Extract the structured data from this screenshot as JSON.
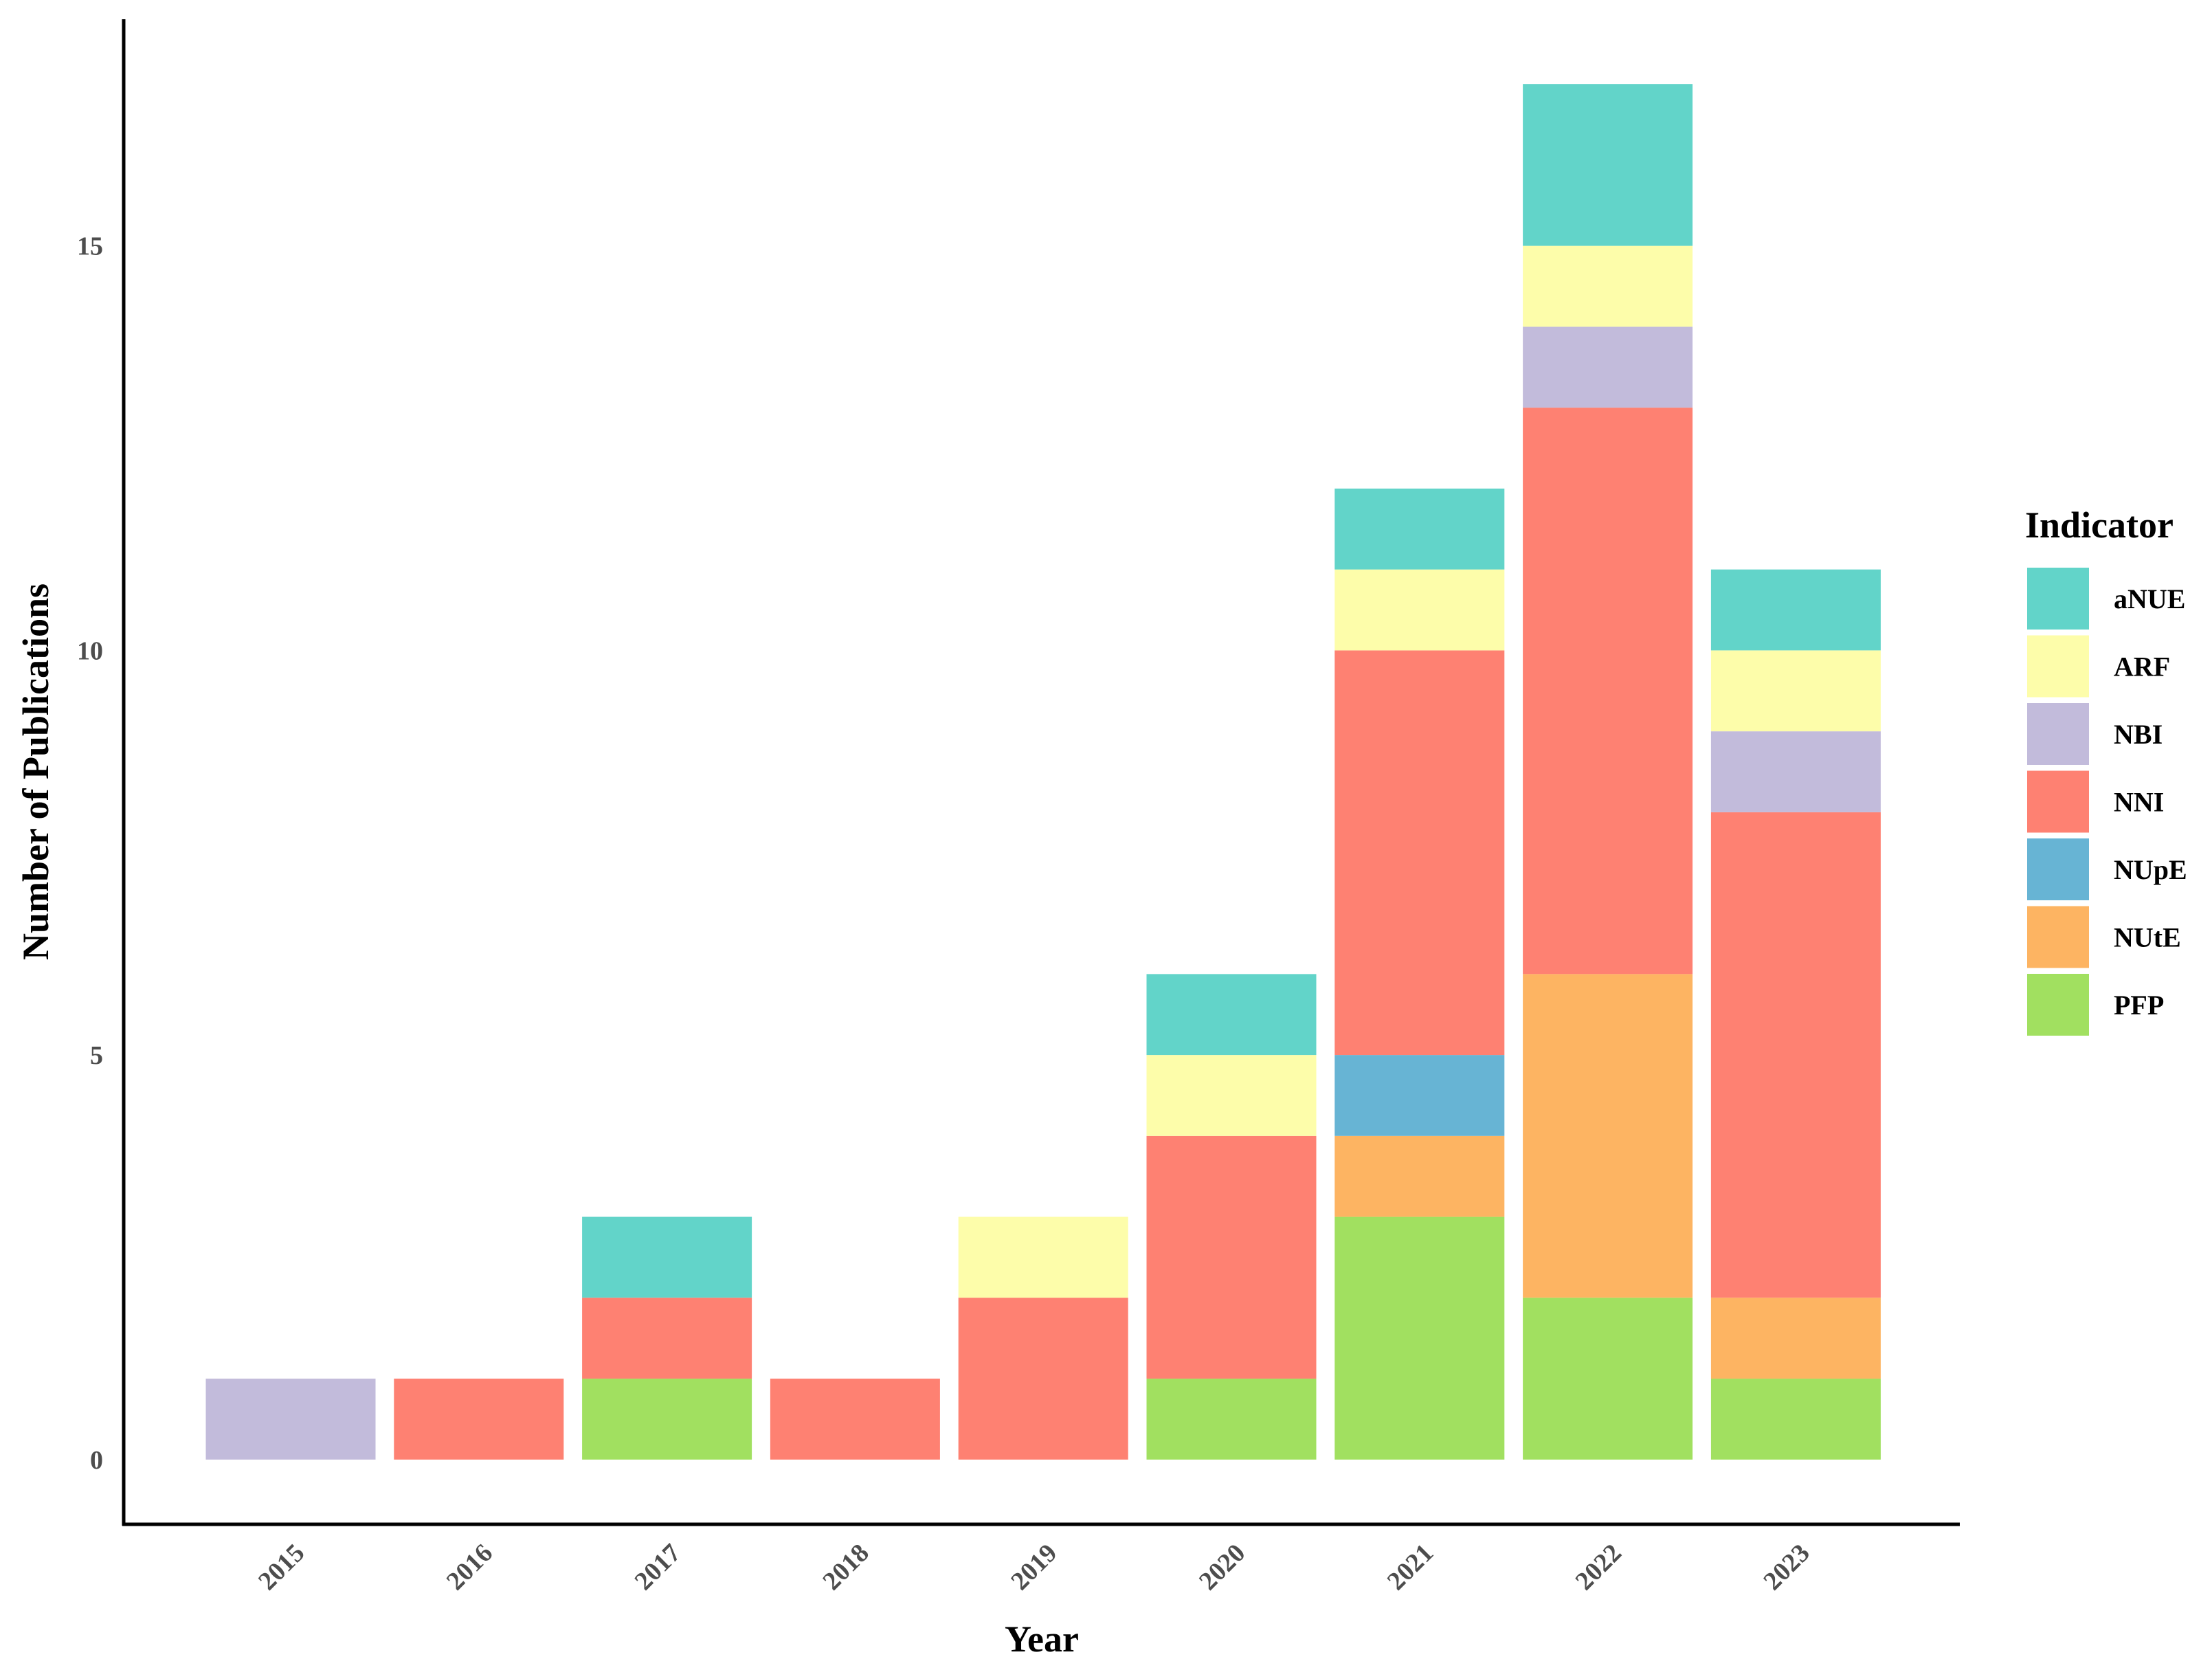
{
  "chart_data": {
    "type": "bar",
    "stacked": true,
    "title": "",
    "xlabel": "Year",
    "ylabel": "Number of Publications",
    "categories": [
      "2015",
      "2016",
      "2017",
      "2018",
      "2019",
      "2020",
      "2021",
      "2022",
      "2023"
    ],
    "ylim": [
      -0.8,
      17.8
    ],
    "yticks": [
      0,
      5,
      10,
      15
    ],
    "ytick_labels": [
      "0",
      "5",
      "10",
      "15"
    ],
    "grid": false,
    "legend": {
      "title": "Indicator",
      "position": "right"
    },
    "series": [
      {
        "name": "PFP",
        "color": "#a1e060",
        "values": [
          0,
          0,
          1,
          0,
          0,
          1,
          3,
          2,
          1
        ]
      },
      {
        "name": "NUtE",
        "color": "#fdb462",
        "values": [
          0,
          0,
          0,
          0,
          0,
          0,
          1,
          4,
          1
        ]
      },
      {
        "name": "NUpE",
        "color": "#67b4d4",
        "values": [
          0,
          0,
          0,
          0,
          0,
          0,
          1,
          0,
          0
        ]
      },
      {
        "name": "NNI",
        "color": "#fe8172",
        "values": [
          0,
          1,
          1,
          1,
          2,
          3,
          5,
          7,
          6
        ]
      },
      {
        "name": "NBI",
        "color": "#c2bbdb",
        "values": [
          1,
          0,
          0,
          0,
          0,
          0,
          0,
          1,
          1
        ]
      },
      {
        "name": "ARF",
        "color": "#fdfdaa",
        "values": [
          0,
          0,
          0,
          0,
          1,
          1,
          1,
          1,
          1
        ]
      },
      {
        "name": "aNUE",
        "color": "#62d4c9",
        "values": [
          0,
          0,
          1,
          0,
          0,
          1,
          1,
          2,
          1
        ]
      }
    ],
    "legend_order": [
      "aNUE",
      "ARF",
      "NBI",
      "NNI",
      "NUpE",
      "NUtE",
      "PFP"
    ]
  }
}
